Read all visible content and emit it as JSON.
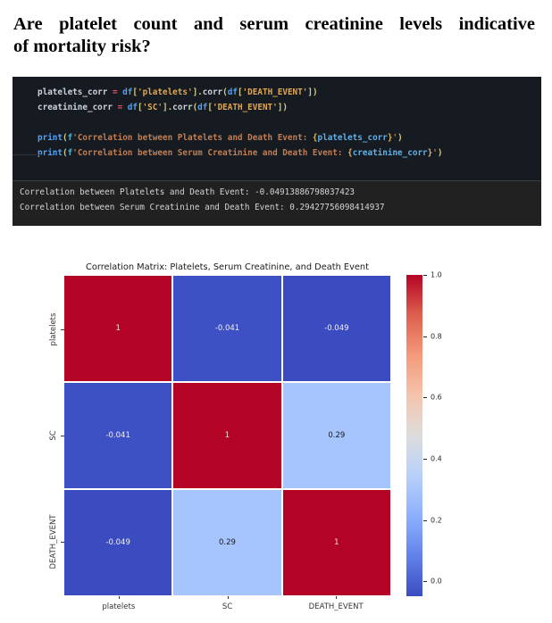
{
  "heading": {
    "lines": [
      "Are platelet count and serum creatinine levels indicative",
      "of mortality risk?"
    ]
  },
  "palette": {
    "code_bg": "#161a21",
    "output_bg": "#212121",
    "output_text": "#d4d4d4",
    "tok_v": "#cdd3dd",
    "tok_o": "#e0566a",
    "tok_kw": "#55a1f2",
    "tok_br": "#d6cd8a",
    "tok_s": "#dfa856",
    "tok_s2": "#c17e54",
    "tok_fb": "#ddb860",
    "tok_fv": "#5fb0e8",
    "tok_fp": "#4fb3c9"
  },
  "code_block": {
    "lines": [
      [
        [
          "v",
          "platelets_corr"
        ],
        [
          "o",
          " = "
        ],
        [
          "kw",
          "df"
        ],
        [
          "br",
          "["
        ],
        [
          "s",
          "'platelets'"
        ],
        [
          "br",
          "]."
        ],
        [
          "fn",
          "corr"
        ],
        [
          "br",
          "("
        ],
        [
          "kw",
          "df"
        ],
        [
          "br",
          "["
        ],
        [
          "s",
          "'DEATH_EVENT'"
        ],
        [
          "br",
          "])"
        ]
      ],
      [
        [
          "v",
          "creatinine_corr"
        ],
        [
          "o",
          " = "
        ],
        [
          "kw",
          "df"
        ],
        [
          "br",
          "["
        ],
        [
          "s",
          "'SC'"
        ],
        [
          "br",
          "]."
        ],
        [
          "fn",
          "corr"
        ],
        [
          "br",
          "("
        ],
        [
          "kw",
          "df"
        ],
        [
          "br",
          "["
        ],
        [
          "s",
          "'DEATH_EVENT'"
        ],
        [
          "br",
          "])"
        ]
      ],
      [],
      [
        [
          "kw",
          "print"
        ],
        [
          "br",
          "("
        ],
        [
          "fp",
          "f"
        ],
        [
          "s2",
          "'Correlation between Platelets and Death Event: "
        ],
        [
          "fb",
          "{"
        ],
        [
          "fv",
          "platelets_corr"
        ],
        [
          "fb",
          "}"
        ],
        [
          "s2",
          "'"
        ],
        [
          "br",
          ")"
        ]
      ],
      [
        [
          "kw",
          "print"
        ],
        [
          "br",
          "("
        ],
        [
          "fp",
          "f"
        ],
        [
          "s2",
          "'Correlation between Serum Creatinine and Death Event: "
        ],
        [
          "fb",
          "{"
        ],
        [
          "fv",
          "creatinine_corr"
        ],
        [
          "fb",
          "}"
        ],
        [
          "s2",
          "'"
        ],
        [
          "br",
          ")"
        ]
      ]
    ]
  },
  "output_block": {
    "lines": [
      "Correlation between Platelets and Death Event: -0.04913886798037423",
      "Correlation between Serum Creatinine and Death Event: 0.29427756098414937"
    ]
  },
  "chart_data": {
    "type": "heatmap",
    "title": "Correlation Matrix: Platelets, Serum Creatinine, and Death Event",
    "categories": [
      "platelets",
      "SC",
      "DEATH_EVENT"
    ],
    "matrix": [
      [
        1,
        -0.041,
        -0.049
      ],
      [
        -0.041,
        1,
        0.29
      ],
      [
        -0.049,
        0.29,
        1
      ]
    ],
    "cell_labels": [
      [
        "1",
        "-0.041",
        "-0.049"
      ],
      [
        "-0.041",
        "1",
        "0.29"
      ],
      [
        "-0.049",
        "0.29",
        "1"
      ]
    ],
    "cell_colors": [
      [
        "#b40426",
        "#3d50c4",
        "#3b4cc0"
      ],
      [
        "#3d50c4",
        "#b40426",
        "#a6c4fe"
      ],
      [
        "#3b4cc0",
        "#a6c4fe",
        "#b40426"
      ]
    ],
    "cell_text_colors": [
      [
        "#f4e3e3",
        "#f2f2f5",
        "#f2f2f5"
      ],
      [
        "#f2f2f5",
        "#f4e3e3",
        "#1a1a1a"
      ],
      [
        "#f2f2f5",
        "#1a1a1a",
        "#f4e3e3"
      ]
    ],
    "colormap": "coolwarm",
    "vmin": -0.049,
    "vmax": 1.0,
    "colorbar_ticks": [
      "1.0",
      "0.8",
      "0.6",
      "0.4",
      "0.2",
      "0.0"
    ],
    "colorbar_gradient": [
      "#3b4cc0",
      "#6282ea",
      "#8db0fe",
      "#b8d0f9",
      "#dddddd",
      "#f5c4ad",
      "#f49a7b",
      "#de604d",
      "#b40426"
    ],
    "legend_position": "right",
    "grid": false
  }
}
